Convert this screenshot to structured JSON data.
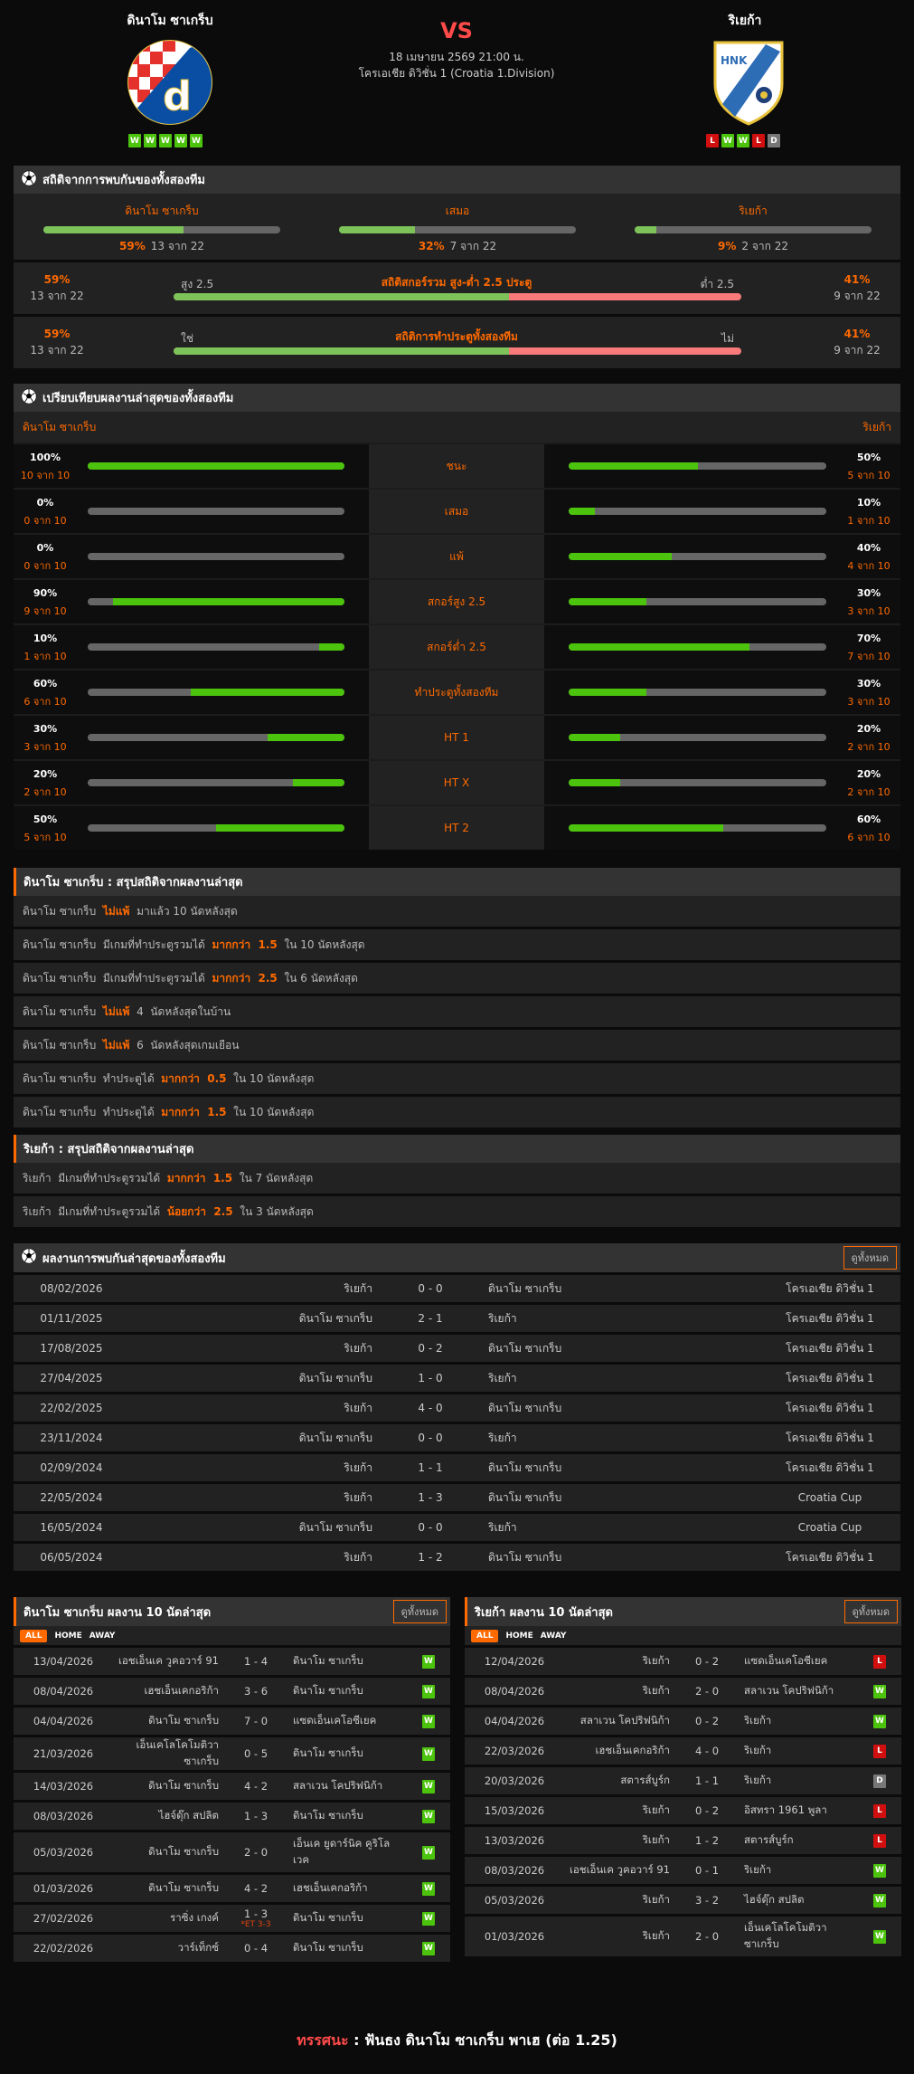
{
  "match": {
    "home_team": "ดินาโม ซาเกร็บ",
    "away_team": "ริเยก้า",
    "vs": "VS",
    "datetime": "18 เมษายน 2569 21:00 น.",
    "league": "โครเอเชีย ดิวิชั่น 1 (Croatia 1.Division)",
    "home_form": [
      "W",
      "W",
      "W",
      "W",
      "W"
    ],
    "away_form": [
      "L",
      "W",
      "W",
      "L",
      "D"
    ]
  },
  "colors": {
    "accent": "#ff6a00",
    "win": "#4cc30c",
    "loss": "#d10f0f",
    "draw": "#777777",
    "over": "#7dc35a",
    "under": "#f87a7a",
    "vs": "#ff4a4a"
  },
  "h2h_stats": {
    "title": "สถิติจากการพบกันของทั้งสองทีม",
    "cols": [
      {
        "label": "ดินาโม ซาเกร็บ",
        "pct": "59%",
        "count": "13 จาก 22",
        "value": 59
      },
      {
        "label": "เสมอ",
        "pct": "32%",
        "count": "7 จาก 22",
        "value": 32
      },
      {
        "label": "ริเยก้า",
        "pct": "9%",
        "count": "2 จาก 22",
        "value": 9
      }
    ],
    "rows": [
      {
        "title": "สถิติสกอร์รวม สูง-ต่ำ 2.5 ประตู",
        "left_label": "สูง 2.5",
        "right_label": "ต่ำ 2.5",
        "left_pct": "59%",
        "left_count": "13 จาก 22",
        "right_pct": "41%",
        "right_count": "9 จาก 22",
        "value": 59
      },
      {
        "title": "สถิติการทำประตูทั้งสองทีม",
        "left_label": "ใช่",
        "right_label": "ไม่",
        "left_pct": "59%",
        "left_count": "13 จาก 22",
        "right_pct": "41%",
        "right_count": "9 จาก 22",
        "value": 59
      }
    ]
  },
  "compare": {
    "title": "เปรียบเทียบผลงานล่าสุดของทั้งสองทีม",
    "home": "ดินาโม ซาเกร็บ",
    "away": "ริเยก้า",
    "rows": [
      {
        "label": "ชนะ",
        "hp": "100%",
        "hc": "10 จาก 10",
        "hv": 100,
        "ap": "50%",
        "ac": "5 จาก 10",
        "av": 50
      },
      {
        "label": "เสมอ",
        "hp": "0%",
        "hc": "0 จาก 10",
        "hv": 0,
        "ap": "10%",
        "ac": "1 จาก 10",
        "av": 10
      },
      {
        "label": "แพ้",
        "hp": "0%",
        "hc": "0 จาก 10",
        "hv": 0,
        "ap": "40%",
        "ac": "4 จาก 10",
        "av": 40
      },
      {
        "label": "สกอร์สูง 2.5",
        "hp": "90%",
        "hc": "9 จาก 10",
        "hv": 90,
        "ap": "30%",
        "ac": "3 จาก 10",
        "av": 30
      },
      {
        "label": "สกอร์ต่ำ 2.5",
        "hp": "10%",
        "hc": "1 จาก 10",
        "hv": 10,
        "ap": "70%",
        "ac": "7 จาก 10",
        "av": 70
      },
      {
        "label": "ทำประตูทั้งสองทีม",
        "hp": "60%",
        "hc": "6 จาก 10",
        "hv": 60,
        "ap": "30%",
        "ac": "3 จาก 10",
        "av": 30
      },
      {
        "label": "HT 1",
        "hp": "30%",
        "hc": "3 จาก 10",
        "hv": 30,
        "ap": "20%",
        "ac": "2 จาก 10",
        "av": 20
      },
      {
        "label": "HT X",
        "hp": "20%",
        "hc": "2 จาก 10",
        "hv": 20,
        "ap": "20%",
        "ac": "2 จาก 10",
        "av": 20
      },
      {
        "label": "HT 2",
        "hp": "50%",
        "hc": "5 จาก 10",
        "hv": 50,
        "ap": "60%",
        "ac": "6 จาก 10",
        "av": 60
      }
    ]
  },
  "home_summary": {
    "title": "ดินาโม ซาเกร็บ : สรุปสถิติจากผลงานล่าสุด",
    "rows": [
      [
        "ดินาโม ซาเกร็บ  ",
        "ไม่แพ้",
        "  มาแล้ว 10 นัดหลังสุด"
      ],
      [
        "ดินาโม ซาเกร็บ  มีเกมที่ทำประตูรวมได้  ",
        "มากกว่า  1.5",
        "  ใน 10 นัดหลังสุด"
      ],
      [
        "ดินาโม ซาเกร็บ  มีเกมที่ทำประตูรวมได้  ",
        "มากกว่า  2.5",
        "  ใน 6 นัดหลังสุด"
      ],
      [
        "ดินาโม ซาเกร็บ  ",
        "ไม่แพ้",
        "  4  นัดหลังสุดในบ้าน"
      ],
      [
        "ดินาโม ซาเกร็บ  ",
        "ไม่แพ้",
        "  6  นัดหลังสุดเกมเยือน"
      ],
      [
        "ดินาโม ซาเกร็บ  ทำประตูได้  ",
        "มากกว่า  0.5",
        "  ใน 10 นัดหลังสุด"
      ],
      [
        "ดินาโม ซาเกร็บ  ทำประตูได้  ",
        "มากกว่า  1.5",
        "  ใน 10 นัดหลังสุด"
      ]
    ]
  },
  "away_summary": {
    "title": "ริเยก้า : สรุปสถิติจากผลงานล่าสุด",
    "rows": [
      [
        "ริเยก้า  มีเกมที่ทำประตูรวมได้  ",
        "มากกว่า  1.5",
        "  ใน 7 นัดหลังสุด"
      ],
      [
        "ริเยก้า  มีเกมที่ทำประตูรวมได้  ",
        "น้อยกว่า  2.5",
        "  ใน 3 นัดหลังสุด"
      ]
    ]
  },
  "h2h_results": {
    "title": "ผลงานการพบกันล่าสุดของทั้งสองทีม",
    "view_all": "ดูทั้งหมด",
    "rows": [
      [
        "08/02/2026",
        "ริเยก้า",
        "0 - 0",
        "ดินาโม ซาเกร็บ",
        "โครเอเชีย ดิวิชั่น 1"
      ],
      [
        "01/11/2025",
        "ดินาโม ซาเกร็บ",
        "2 - 1",
        "ริเยก้า",
        "โครเอเชีย ดิวิชั่น 1"
      ],
      [
        "17/08/2025",
        "ริเยก้า",
        "0 - 2",
        "ดินาโม ซาเกร็บ",
        "โครเอเชีย ดิวิชั่น 1"
      ],
      [
        "27/04/2025",
        "ดินาโม ซาเกร็บ",
        "1 - 0",
        "ริเยก้า",
        "โครเอเชีย ดิวิชั่น 1"
      ],
      [
        "22/02/2025",
        "ริเยก้า",
        "4 - 0",
        "ดินาโม ซาเกร็บ",
        "โครเอเชีย ดิวิชั่น 1"
      ],
      [
        "23/11/2024",
        "ดินาโม ซาเกร็บ",
        "0 - 0",
        "ริเยก้า",
        "โครเอเชีย ดิวิชั่น 1"
      ],
      [
        "02/09/2024",
        "ริเยก้า",
        "1 - 1",
        "ดินาโม ซาเกร็บ",
        "โครเอเชีย ดิวิชั่น 1"
      ],
      [
        "22/05/2024",
        "ริเยก้า",
        "1 - 3",
        "ดินาโม ซาเกร็บ",
        "Croatia Cup"
      ],
      [
        "16/05/2024",
        "ดินาโม ซาเกร็บ",
        "0 - 0",
        "ริเยก้า",
        "Croatia Cup"
      ],
      [
        "06/05/2024",
        "ริเยก้า",
        "1 - 2",
        "ดินาโม ซาเกร็บ",
        "โครเอเชีย ดิวิชั่น 1"
      ]
    ]
  },
  "tabs": [
    "ALL",
    "HOME",
    "AWAY"
  ],
  "home_recent": {
    "title": "ดินาโม ซาเกร็บ ผลงาน 10 นัดล่าสุด",
    "view_all": "ดูทั้งหมด",
    "rows": [
      {
        "date": "13/04/2026",
        "home": "เอชเอ็นเค วูคอวาร์ 91",
        "score": "1 - 4",
        "away": "ดินาโม ซาเกร็บ",
        "result": "W"
      },
      {
        "date": "08/04/2026",
        "home": "เฮชเอ็นเคกอริก้า",
        "score": "3 - 6",
        "away": "ดินาโม ซาเกร็บ",
        "result": "W"
      },
      {
        "date": "04/04/2026",
        "home": "ดินาโม ซาเกร็บ",
        "score": "7 - 0",
        "away": "แซดเอ็นเคโอซีเยค",
        "result": "W"
      },
      {
        "date": "21/03/2026",
        "home": "เอ็นเคโลโคโมติวา ซาเกร็บ",
        "score": "0 - 5",
        "away": "ดินาโม ซาเกร็บ",
        "result": "W"
      },
      {
        "date": "14/03/2026",
        "home": "ดินาโม ซาเกร็บ",
        "score": "4 - 2",
        "away": "สลาเวน โคปริฟนิก้า",
        "result": "W"
      },
      {
        "date": "08/03/2026",
        "home": "ไฮจ์ดุ๊ก สปลิต",
        "score": "1 - 3",
        "away": "ดินาโม ซาเกร็บ",
        "result": "W"
      },
      {
        "date": "05/03/2026",
        "home": "ดินาโม ซาเกร็บ",
        "score": "2 - 0",
        "away": "เอ็นเค ยูดาร์นิค คูริโลเวค",
        "result": "W"
      },
      {
        "date": "01/03/2026",
        "home": "ดินาโม ซาเกร็บ",
        "score": "4 - 2",
        "away": "เฮชเอ็นเคกอริก้า",
        "result": "W"
      },
      {
        "date": "27/02/2026",
        "home": "ราซิ่ง เกงค์",
        "score": "1 - 3",
        "note": "*ET 3-3",
        "away": "ดินาโม ซาเกร็บ",
        "result": "W"
      },
      {
        "date": "22/02/2026",
        "home": "วาร์เท็กซ์",
        "score": "0 - 4",
        "away": "ดินาโม ซาเกร็บ",
        "result": "W"
      }
    ]
  },
  "away_recent": {
    "title": "ริเยก้า ผลงาน 10 นัดล่าสุด",
    "view_all": "ดูทั้งหมด",
    "rows": [
      {
        "date": "12/04/2026",
        "home": "ริเยก้า",
        "score": "0 - 2",
        "away": "แซดเอ็นเคโอซีเยค",
        "result": "L"
      },
      {
        "date": "08/04/2026",
        "home": "ริเยก้า",
        "score": "2 - 0",
        "away": "สลาเวน โคปริฟนิก้า",
        "result": "W"
      },
      {
        "date": "04/04/2026",
        "home": "สลาเวน โคปริฟนิก้า",
        "score": "0 - 2",
        "away": "ริเยก้า",
        "result": "W"
      },
      {
        "date": "22/03/2026",
        "home": "เฮชเอ็นเคกอริก้า",
        "score": "4 - 0",
        "away": "ริเยก้า",
        "result": "L"
      },
      {
        "date": "20/03/2026",
        "home": "สตารส์บูร์ก",
        "score": "1 - 1",
        "away": "ริเยก้า",
        "result": "D"
      },
      {
        "date": "15/03/2026",
        "home": "ริเยก้า",
        "score": "0 - 2",
        "away": "อิสทรา 1961 พูลา",
        "result": "L"
      },
      {
        "date": "13/03/2026",
        "home": "ริเยก้า",
        "score": "1 - 2",
        "away": "สตารส์บูร์ก",
        "result": "L"
      },
      {
        "date": "08/03/2026",
        "home": "เอชเอ็นเค วูคอวาร์ 91",
        "score": "0 - 1",
        "away": "ริเยก้า",
        "result": "W"
      },
      {
        "date": "05/03/2026",
        "home": "ริเยก้า",
        "score": "3 - 2",
        "away": "ไฮจ์ดุ๊ก สปลิต",
        "result": "W"
      },
      {
        "date": "01/03/2026",
        "home": "ริเยก้า",
        "score": "2 - 0",
        "away": "เอ็นเคโลโคโมติวา ซาเกร็บ",
        "result": "W"
      }
    ]
  },
  "prediction": {
    "label": "ทรรศนะ",
    "sep": " : ",
    "text": "ฟันธง ดินาโม ซาเกร็บ พาเฮ (ต่อ 1.25)"
  },
  "logos": {
    "home_crest_text": "d",
    "away_crest_text": "HNK RIJEKA"
  }
}
